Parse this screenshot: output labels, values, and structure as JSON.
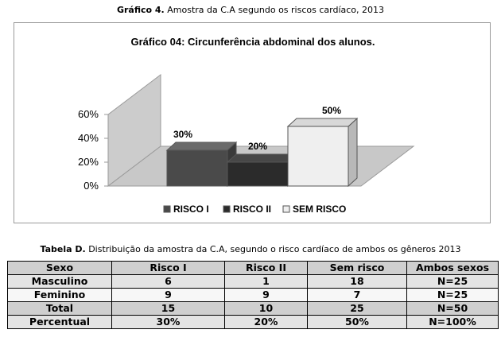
{
  "figure_caption": {
    "label": "Gráfico 4.",
    "text": " Amostra da C.A segundo os riscos cardíaco, 2013"
  },
  "table_caption": {
    "label": "Tabela D.",
    "text": " Distribuição da amostra da C.A, segundo o risco cardíaco de ambos os gêneros 2013"
  },
  "chart_data": {
    "type": "bar",
    "title": "Gráfico 04: Circunferência abdominal dos alunos.",
    "categories": [
      "RISCO I",
      "RISCO II",
      "SEM RISCO"
    ],
    "values": [
      30,
      20,
      50
    ],
    "data_labels": [
      "30%",
      "20%",
      "50%"
    ],
    "ylim": [
      0,
      60
    ],
    "yticks": [
      0,
      20,
      40,
      60
    ],
    "ytick_labels": [
      "0%",
      "20%",
      "40%",
      "60%"
    ],
    "xlabel": "",
    "ylabel": "",
    "grid": false,
    "style": "3d",
    "legend_position": "bottom",
    "colors": [
      "#4a4a4a",
      "#2b2b2b",
      "#efefef"
    ],
    "series": [
      {
        "name": "RISCO I",
        "value": 30
      },
      {
        "name": "RISCO II",
        "value": 20
      },
      {
        "name": "SEM RISCO",
        "value": 50
      }
    ]
  },
  "table": {
    "headers": [
      "Sexo",
      "Risco I",
      "Risco II",
      "Sem risco",
      "Ambos sexos"
    ],
    "rows": [
      [
        "Masculino",
        "6",
        "1",
        "18",
        "N=25"
      ],
      [
        "Feminino",
        "9",
        "9",
        "7",
        "N=25"
      ],
      [
        "Total",
        "15",
        "10",
        "25",
        "N=50"
      ],
      [
        "Percentual",
        "30%",
        "20%",
        "50%",
        "N=100%"
      ]
    ]
  }
}
